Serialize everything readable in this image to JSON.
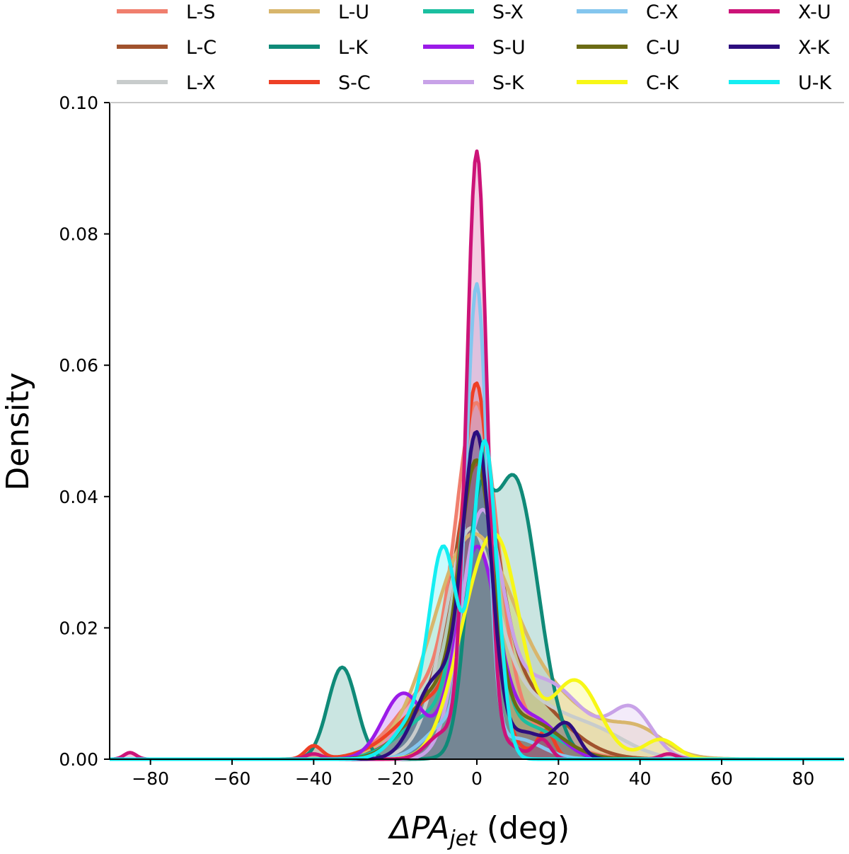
{
  "chart_data": {
    "type": "area",
    "xlabel": "ΔPA",
    "xlabel_sub": "jet",
    "xlabel_unit": " (deg)",
    "ylabel": "Density",
    "xlim": [
      -90,
      90
    ],
    "ylim": [
      0,
      0.1
    ],
    "x_ticks": [
      -80,
      -60,
      -40,
      -20,
      0,
      20,
      40,
      60,
      80
    ],
    "x_tick_labels": [
      "−80",
      "−60",
      "−40",
      "−20",
      "0",
      "20",
      "40",
      "60",
      "80"
    ],
    "y_ticks": [
      0,
      0.02,
      0.04,
      0.06,
      0.08,
      0.1
    ],
    "y_tick_labels": [
      "0.00",
      "0.02",
      "0.04",
      "0.06",
      "0.08",
      "0.10"
    ],
    "grid": false,
    "legend_placement": "top",
    "legend_columns": 5,
    "series": [
      {
        "name": "L-S",
        "color": "#F07F6E",
        "components": [
          [
            0.048,
            0,
            5
          ],
          [
            0.01,
            -12,
            8
          ],
          [
            0.005,
            10,
            10
          ]
        ]
      },
      {
        "name": "L-C",
        "color": "#A0522D",
        "components": [
          [
            0.03,
            0,
            5
          ],
          [
            0.012,
            -4,
            10
          ],
          [
            0.008,
            12,
            10
          ]
        ]
      },
      {
        "name": "L-X",
        "color": "#C8CCCC",
        "components": [
          [
            0.028,
            -2,
            6
          ],
          [
            0.01,
            8,
            12
          ],
          [
            0.003,
            30,
            8
          ]
        ]
      },
      {
        "name": "L-U",
        "color": "#D8B66C",
        "components": [
          [
            0.025,
            -2,
            9
          ],
          [
            0.012,
            10,
            16
          ],
          [
            0.003,
            40,
            6
          ]
        ]
      },
      {
        "name": "L-K",
        "color": "#0F8A78",
        "components": [
          [
            0.014,
            -33,
            3.5
          ],
          [
            0.026,
            0,
            3
          ],
          [
            0.043,
            9,
            6
          ]
        ]
      },
      {
        "name": "S-C",
        "color": "#EE4026",
        "components": [
          [
            0.05,
            0,
            3.5
          ],
          [
            0.01,
            -8,
            10
          ],
          [
            0.004,
            17,
            2
          ],
          [
            0.002,
            -40,
            2
          ]
        ]
      },
      {
        "name": "S-X",
        "color": "#1BBFA0",
        "components": [
          [
            0.045,
            0,
            4
          ],
          [
            0.007,
            -10,
            8
          ],
          [
            0.005,
            12,
            8
          ]
        ]
      },
      {
        "name": "S-U",
        "color": "#9B1BE8",
        "components": [
          [
            0.032,
            0,
            5
          ],
          [
            0.01,
            -18,
            5
          ],
          [
            0.006,
            14,
            6
          ]
        ]
      },
      {
        "name": "S-K",
        "color": "#C8A2E8",
        "components": [
          [
            0.034,
            1,
            5
          ],
          [
            0.012,
            16,
            10
          ],
          [
            0.007,
            38,
            5
          ]
        ]
      },
      {
        "name": "C-X",
        "color": "#84C6EE",
        "components": [
          [
            0.068,
            0,
            2.5
          ],
          [
            0.006,
            -6,
            6
          ],
          [
            0.003,
            10,
            6
          ]
        ]
      },
      {
        "name": "C-U",
        "color": "#6B6B14",
        "components": [
          [
            0.04,
            0,
            4
          ],
          [
            0.01,
            -10,
            7
          ],
          [
            0.006,
            12,
            8
          ]
        ]
      },
      {
        "name": "C-K",
        "color": "#F7F716",
        "components": [
          [
            0.022,
            0,
            6
          ],
          [
            0.02,
            7,
            5
          ],
          [
            0.012,
            24,
            6
          ],
          [
            0.003,
            45,
            4
          ]
        ]
      },
      {
        "name": "X-U",
        "color": "#CC1378",
        "components": [
          [
            0.092,
            0,
            2.5
          ],
          [
            0.004,
            -8,
            4
          ],
          [
            0.003,
            16,
            2
          ],
          [
            0.002,
            8,
            3
          ],
          [
            0.001,
            -85,
            1.5
          ],
          [
            0.0008,
            -40,
            2
          ],
          [
            0.0008,
            47,
            2
          ]
        ]
      },
      {
        "name": "X-K",
        "color": "#2D0D7F",
        "components": [
          [
            0.048,
            0,
            3.5
          ],
          [
            0.012,
            -10,
            5
          ],
          [
            0.005,
            22,
            3
          ],
          [
            0.004,
            12,
            5
          ]
        ]
      },
      {
        "name": "U-K",
        "color": "#14EEF2",
        "components": [
          [
            0.048,
            2,
            3
          ],
          [
            0.03,
            -8,
            3.5
          ],
          [
            0.006,
            -15,
            5
          ]
        ]
      }
    ]
  }
}
